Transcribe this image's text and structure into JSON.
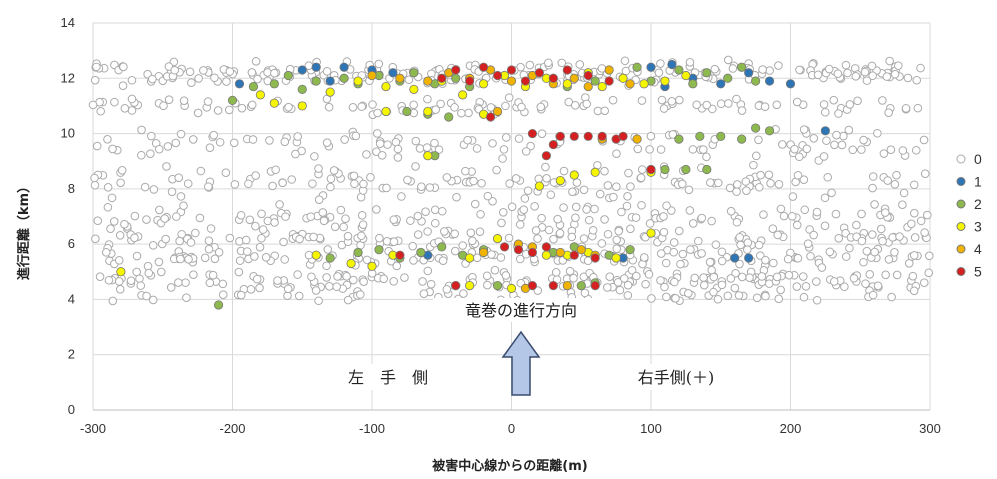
{
  "chart_data": {
    "type": "scatter",
    "title": "",
    "xlabel": "被害中心線からの距離(m)",
    "ylabel": "進行距離（km）",
    "xlim": [
      -300,
      300
    ],
    "ylim": [
      0,
      14
    ],
    "xticks": [
      "-300",
      "-200",
      "-100",
      "0",
      "100",
      "200",
      "300"
    ],
    "yticks": [
      "0",
      "2",
      "4",
      "6",
      "8",
      "10",
      "12",
      "14"
    ],
    "grid": true,
    "legend_position": "right",
    "annotations": {
      "direction": "竜巻の進行方向",
      "left_side": "左　手　側",
      "right_side": "右手側(＋)"
    },
    "bands": [
      {
        "y": 12.2,
        "spread": 0.5,
        "xmin": -300,
        "xmax": 300,
        "n": 230
      },
      {
        "y": 11.0,
        "spread": 0.4,
        "xmin": -300,
        "xmax": 300,
        "n": 110
      },
      {
        "y": 9.6,
        "spread": 0.6,
        "xmin": -300,
        "xmax": 300,
        "n": 120
      },
      {
        "y": 8.2,
        "spread": 0.7,
        "xmin": -300,
        "xmax": 300,
        "n": 150
      },
      {
        "y": 7.0,
        "spread": 0.6,
        "xmin": -300,
        "xmax": 300,
        "n": 130
      },
      {
        "y": 6.2,
        "spread": 0.5,
        "xmin": -300,
        "xmax": 300,
        "n": 140
      },
      {
        "y": 5.5,
        "spread": 0.4,
        "xmin": -300,
        "xmax": 300,
        "n": 140
      },
      {
        "y": 4.7,
        "spread": 0.4,
        "xmin": -300,
        "xmax": 300,
        "n": 180
      },
      {
        "y": 4.1,
        "spread": 0.3,
        "xmin": -300,
        "xmax": 300,
        "n": 60
      }
    ],
    "series": [
      {
        "name": "0",
        "color": "#ffffff",
        "stroke": "#aaaaaa",
        "points": "generated-from-bands"
      },
      {
        "name": "1",
        "color": "#2e75b6",
        "points": [
          [
            -195,
            11.8
          ],
          [
            -150,
            12.3
          ],
          [
            -140,
            12.4
          ],
          [
            -120,
            12.4
          ],
          [
            -100,
            12.3
          ],
          [
            -85,
            12.2
          ],
          [
            -130,
            11.9
          ],
          [
            100,
            12.4
          ],
          [
            115,
            12.5
          ],
          [
            130,
            12.0
          ],
          [
            150,
            11.8
          ],
          [
            170,
            12.2
          ],
          [
            185,
            11.9
          ],
          [
            200,
            11.8
          ],
          [
            110,
            11.7
          ],
          [
            225,
            10.1
          ],
          [
            160,
            5.5
          ],
          [
            170,
            5.5
          ],
          [
            -60,
            5.6
          ],
          [
            80,
            5.5
          ]
        ]
      },
      {
        "name": "2",
        "color": "#8db94e",
        "points": [
          [
            -200,
            11.2
          ],
          [
            -185,
            11.7
          ],
          [
            -170,
            11.8
          ],
          [
            -160,
            12.1
          ],
          [
            -150,
            11.6
          ],
          [
            -140,
            11.9
          ],
          [
            -120,
            12.0
          ],
          [
            -110,
            11.8
          ],
          [
            -95,
            12.1
          ],
          [
            -80,
            11.9
          ],
          [
            -70,
            12.2
          ],
          [
            -55,
            11.8
          ],
          [
            -40,
            12.0
          ],
          [
            -30,
            11.7
          ],
          [
            40,
            11.7
          ],
          [
            60,
            11.9
          ],
          [
            90,
            12.4
          ],
          [
            100,
            11.9
          ],
          [
            120,
            12.3
          ],
          [
            130,
            11.8
          ],
          [
            140,
            12.2
          ],
          [
            155,
            12.0
          ],
          [
            165,
            12.4
          ],
          [
            175,
            11.9
          ],
          [
            -45,
            10.6
          ],
          [
            -75,
            10.8
          ],
          [
            -60,
            10.7
          ],
          [
            120,
            9.8
          ],
          [
            135,
            9.9
          ],
          [
            150,
            9.9
          ],
          [
            165,
            9.8
          ],
          [
            175,
            10.2
          ],
          [
            185,
            10.1
          ],
          [
            100,
            8.7
          ],
          [
            110,
            8.7
          ],
          [
            125,
            8.7
          ],
          [
            140,
            8.7
          ],
          [
            -55,
            9.2
          ],
          [
            -130,
            5.5
          ],
          [
            -110,
            5.7
          ],
          [
            -95,
            5.8
          ],
          [
            -80,
            5.5
          ],
          [
            -65,
            5.7
          ],
          [
            -50,
            5.9
          ],
          [
            -35,
            5.6
          ],
          [
            -20,
            5.8
          ],
          [
            30,
            5.7
          ],
          [
            45,
            5.9
          ],
          [
            70,
            5.6
          ],
          [
            85,
            5.8
          ],
          [
            -210,
            3.8
          ],
          [
            -40,
            4.5
          ],
          [
            -10,
            4.5
          ],
          [
            50,
            4.5
          ],
          [
            60,
            4.6
          ]
        ]
      },
      {
        "name": "3",
        "color": "#f5f500",
        "points": [
          [
            -180,
            11.4
          ],
          [
            -170,
            11.1
          ],
          [
            -150,
            11.0
          ],
          [
            -130,
            11.5
          ],
          [
            -110,
            11.9
          ],
          [
            -90,
            11.7
          ],
          [
            -70,
            11.6
          ],
          [
            -50,
            11.9
          ],
          [
            -35,
            11.4
          ],
          [
            -20,
            11.8
          ],
          [
            -5,
            12.1
          ],
          [
            10,
            11.7
          ],
          [
            25,
            12.0
          ],
          [
            40,
            11.8
          ],
          [
            55,
            12.2
          ],
          [
            65,
            11.7
          ],
          [
            80,
            12.0
          ],
          [
            95,
            11.8
          ],
          [
            110,
            11.9
          ],
          [
            125,
            12.1
          ],
          [
            -90,
            10.8
          ],
          [
            -60,
            10.8
          ],
          [
            -20,
            10.7
          ],
          [
            20,
            8.1
          ],
          [
            35,
            8.3
          ],
          [
            45,
            8.5
          ],
          [
            60,
            8.6
          ],
          [
            100,
            8.6
          ],
          [
            -60,
            9.2
          ],
          [
            -280,
            5.0
          ],
          [
            -140,
            5.6
          ],
          [
            -115,
            5.3
          ],
          [
            -100,
            5.2
          ],
          [
            -85,
            5.6
          ],
          [
            -30,
            5.5
          ],
          [
            -10,
            6.2
          ],
          [
            25,
            5.6
          ],
          [
            40,
            5.6
          ],
          [
            55,
            5.7
          ],
          [
            75,
            5.5
          ],
          [
            100,
            6.4
          ],
          [
            -30,
            4.5
          ],
          [
            0,
            4.4
          ]
        ]
      },
      {
        "name": "4",
        "color": "#f0b400",
        "points": [
          [
            -100,
            12.1
          ],
          [
            -80,
            12.0
          ],
          [
            -60,
            11.9
          ],
          [
            -45,
            12.2
          ],
          [
            -30,
            12.0
          ],
          [
            -15,
            12.3
          ],
          [
            0,
            11.9
          ],
          [
            15,
            12.1
          ],
          [
            30,
            11.8
          ],
          [
            45,
            12.0
          ],
          [
            55,
            11.7
          ],
          [
            70,
            12.3
          ],
          [
            85,
            11.8
          ],
          [
            -10,
            10.8
          ],
          [
            65,
            9.8
          ],
          [
            90,
            9.8
          ],
          [
            -20,
            5.7
          ],
          [
            5,
            6.0
          ],
          [
            15,
            5.9
          ],
          [
            35,
            5.7
          ],
          [
            50,
            5.8
          ],
          [
            60,
            5.6
          ],
          [
            10,
            4.4
          ],
          [
            40,
            4.5
          ]
        ]
      },
      {
        "name": "5",
        "color": "#d42020",
        "points": [
          [
            -50,
            12.0
          ],
          [
            -40,
            12.3
          ],
          [
            -30,
            11.9
          ],
          [
            -20,
            12.4
          ],
          [
            -10,
            12.1
          ],
          [
            0,
            12.3
          ],
          [
            10,
            11.9
          ],
          [
            20,
            12.2
          ],
          [
            30,
            12.0
          ],
          [
            40,
            12.3
          ],
          [
            55,
            12.1
          ],
          [
            70,
            11.9
          ],
          [
            -15,
            10.6
          ],
          [
            15,
            10.0
          ],
          [
            25,
            9.2
          ],
          [
            30,
            9.6
          ],
          [
            35,
            9.9
          ],
          [
            45,
            9.9
          ],
          [
            55,
            9.9
          ],
          [
            65,
            9.9
          ],
          [
            75,
            9.8
          ],
          [
            80,
            9.9
          ],
          [
            100,
            8.7
          ],
          [
            -80,
            5.6
          ],
          [
            -5,
            5.9
          ],
          [
            5,
            5.8
          ],
          [
            15,
            5.7
          ],
          [
            25,
            5.9
          ],
          [
            45,
            5.6
          ],
          [
            60,
            5.5
          ],
          [
            -40,
            4.5
          ],
          [
            15,
            4.5
          ],
          [
            30,
            4.5
          ],
          [
            60,
            4.5
          ]
        ]
      }
    ]
  }
}
